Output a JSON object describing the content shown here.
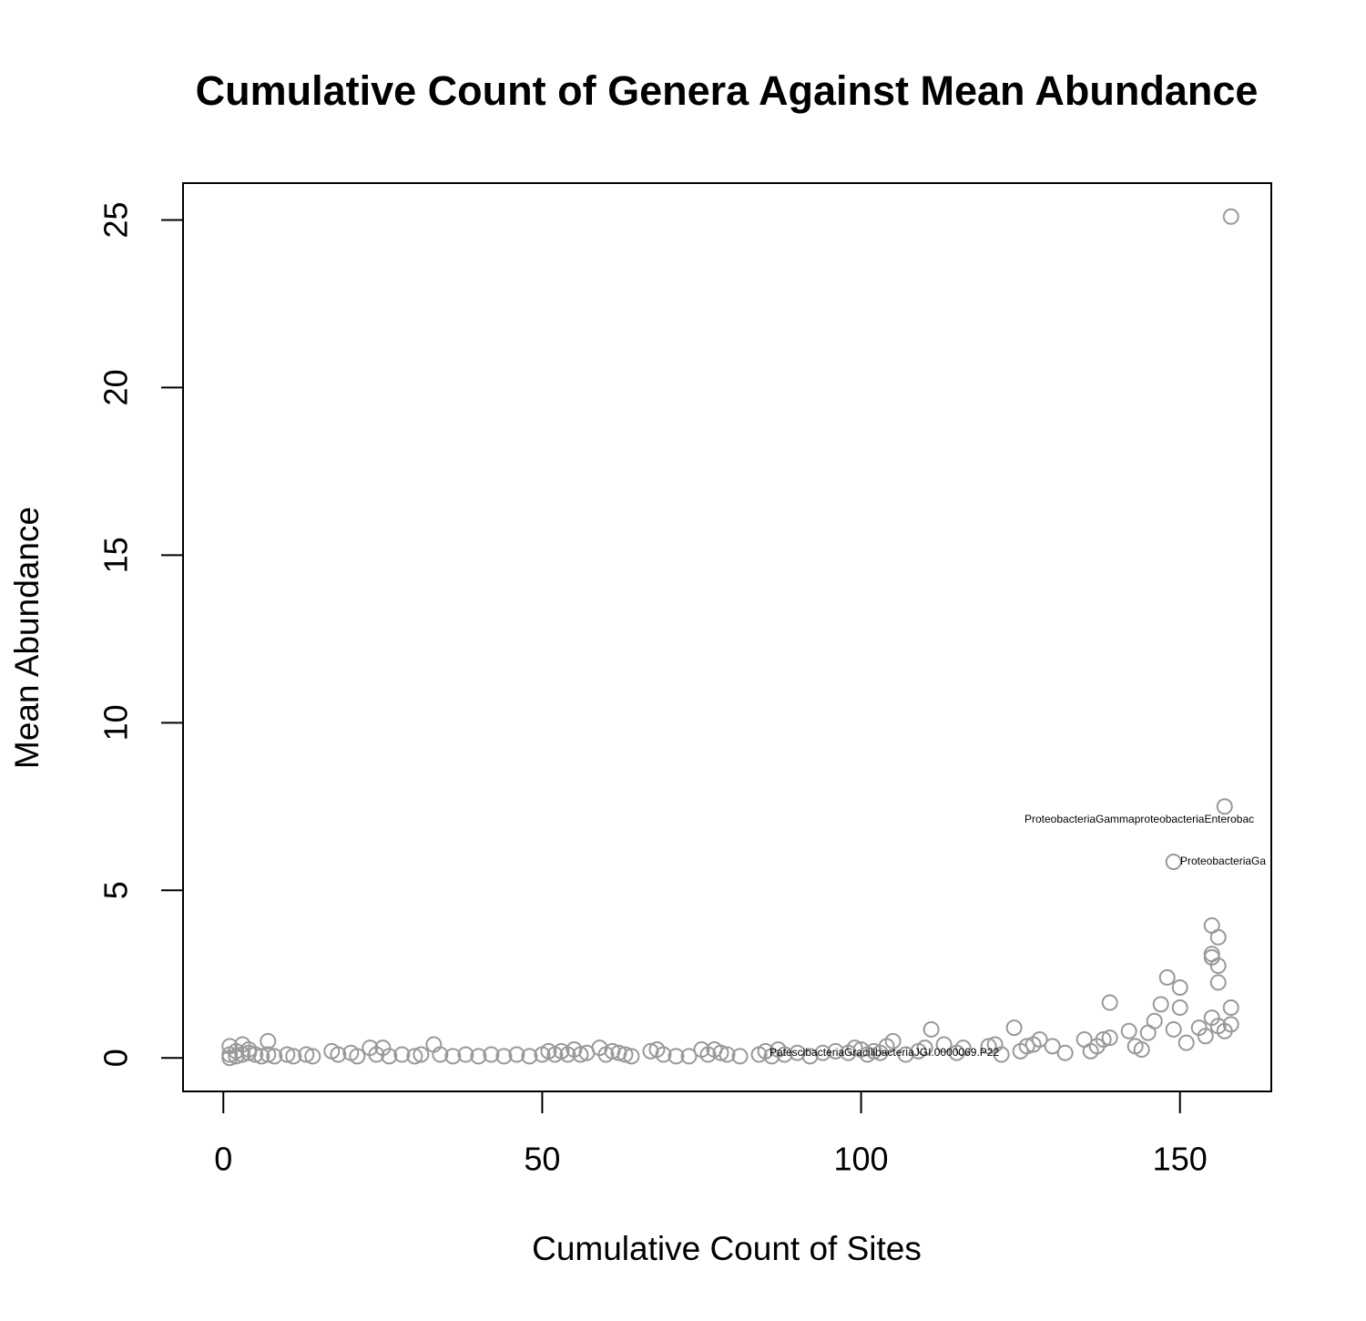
{
  "chart_data": {
    "type": "scatter",
    "title": "Cumulative Count of Genera Against Mean Abundance",
    "x_label": "Cumulative Count of Sites",
    "y_label": "Mean Abundance",
    "xlim": [
      -6.32,
      164.32
    ],
    "xticks": [
      0,
      50,
      100,
      150
    ],
    "ylim": [
      -1.0,
      26.1
    ],
    "yticks": [
      0,
      5,
      10,
      15,
      20,
      25
    ],
    "series": [
      {
        "color": "#999999",
        "x": [
          1,
          1,
          1,
          2,
          2,
          3,
          3,
          4,
          4,
          5,
          6,
          7,
          7,
          8,
          10,
          11,
          13,
          14,
          17,
          18,
          20,
          21,
          23,
          24,
          25,
          26,
          28,
          30,
          31,
          33,
          34,
          36,
          38,
          40,
          42,
          44,
          46,
          48,
          50,
          51,
          52,
          53,
          54,
          55,
          56,
          57,
          59,
          60,
          61,
          62,
          63,
          64,
          67,
          68,
          69,
          71,
          73,
          75,
          76,
          77,
          78,
          79,
          81,
          84,
          85,
          86,
          87,
          88,
          90,
          92,
          94,
          96,
          98,
          99,
          100,
          101,
          102,
          103,
          104,
          105,
          107,
          109,
          110,
          111,
          113,
          115,
          116,
          120,
          121,
          122,
          124,
          125,
          126,
          127,
          128,
          130,
          132,
          135,
          136,
          137,
          138,
          139,
          139,
          142,
          143,
          144,
          145,
          146,
          147,
          148,
          149,
          149,
          150,
          150,
          151,
          153,
          154,
          155,
          155,
          155,
          155,
          156,
          156,
          156,
          156,
          157,
          157,
          158,
          158,
          158
        ],
        "values": [
          0.35,
          0.1,
          0,
          0.2,
          0.05,
          0.4,
          0.1,
          0.15,
          0.25,
          0.1,
          0.05,
          0.5,
          0.1,
          0.05,
          0.1,
          0.05,
          0.1,
          0.05,
          0.2,
          0.1,
          0.15,
          0.05,
          0.3,
          0.1,
          0.3,
          0.05,
          0.1,
          0.05,
          0.1,
          0.4,
          0.1,
          0.05,
          0.1,
          0.05,
          0.1,
          0.05,
          0.1,
          0.05,
          0.1,
          0.2,
          0.1,
          0.2,
          0.1,
          0.25,
          0.1,
          0.15,
          0.3,
          0.1,
          0.2,
          0.15,
          0.1,
          0.05,
          0.2,
          0.25,
          0.1,
          0.05,
          0.05,
          0.25,
          0.1,
          0.25,
          0.15,
          0.1,
          0.05,
          0.1,
          0.2,
          0.05,
          0.25,
          0.1,
          0.15,
          0.05,
          0.15,
          0.2,
          0.15,
          0.3,
          0.25,
          0.1,
          0.2,
          0.15,
          0.35,
          0.5,
          0.1,
          0.2,
          0.3,
          0.85,
          0.4,
          0.15,
          0.3,
          0.35,
          0.4,
          0.1,
          0.9,
          0.2,
          0.35,
          0.4,
          0.55,
          0.35,
          0.15,
          0.55,
          0.2,
          0.35,
          0.55,
          1.65,
          0.6,
          0.8,
          0.35,
          0.25,
          0.75,
          1.1,
          1.6,
          2.4,
          5.85,
          0.85,
          2.1,
          1.5,
          0.45,
          0.9,
          0.65,
          3.95,
          3.1,
          3.0,
          1.2,
          3.6,
          2.75,
          2.25,
          0.95,
          7.5,
          0.8,
          25.1,
          1.5,
          1.0
        ]
      }
    ],
    "annotations": [
      "ProteobacteriaGammaproteobacteriaEnterobac",
      "ProteobacteriaGa",
      "PatescibacteriaGracilibacteriaJGI.0000069.P22"
    ]
  }
}
